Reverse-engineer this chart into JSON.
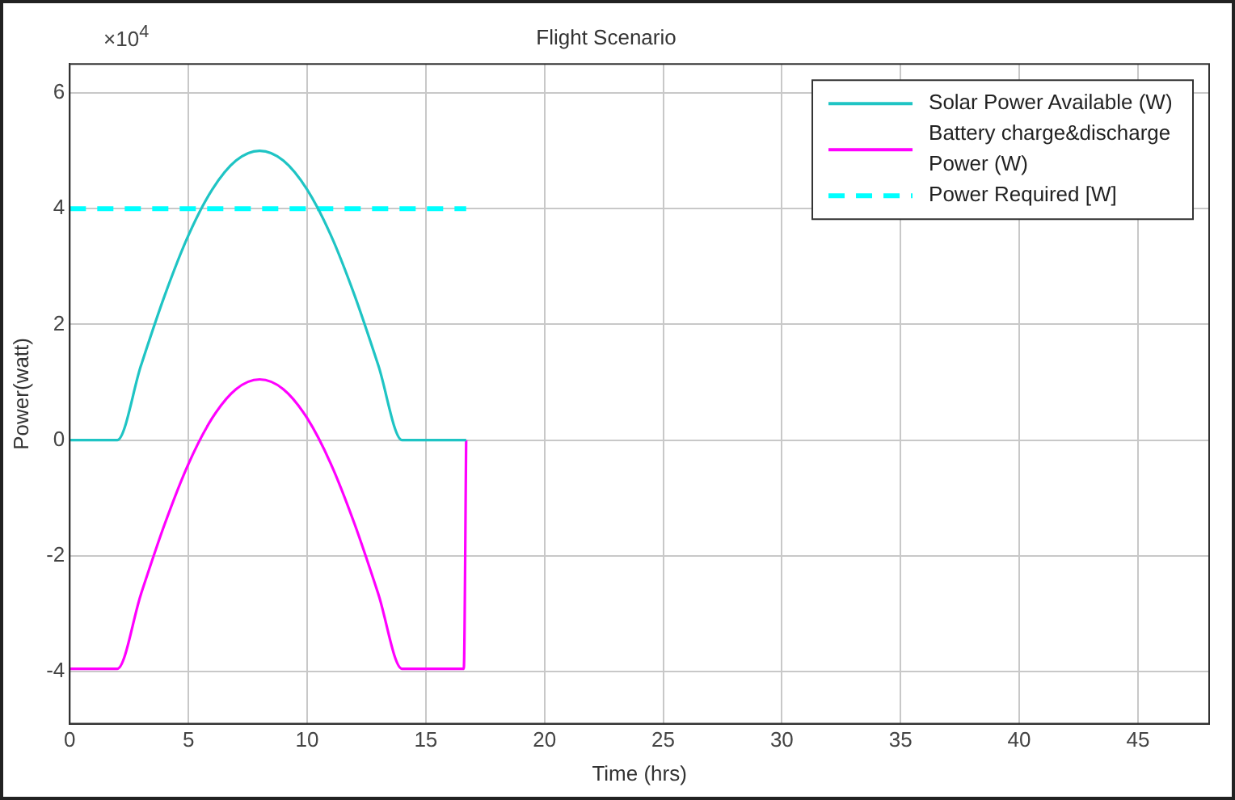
{
  "chart_data": {
    "type": "line",
    "title": "Flight Scenario",
    "xlabel": "Time (hrs)",
    "ylabel": "Power(watt)",
    "annotations": [
      "×10$^{4}$"
    ],
    "xlim": [
      0,
      48
    ],
    "xticks": [
      0,
      5,
      10,
      15,
      20,
      25,
      30,
      35,
      40,
      45
    ],
    "ylim": [
      -4.9,
      6.5
    ],
    "yticks": [
      -4,
      -2,
      0,
      2,
      4,
      6
    ],
    "grid": true,
    "legend": "top right",
    "marker": "none",
    "series": [
      {
        "name": "Solar Power Available (W)",
        "color": "#1fc4c4",
        "line_style": "solid",
        "x": [
          0,
          2,
          3,
          4,
          5,
          6,
          7,
          8,
          9,
          10,
          11,
          12,
          13,
          14,
          16.7
        ],
        "values": [
          0,
          0,
          1.29,
          2.5,
          3.54,
          4.33,
          4.83,
          5.0,
          4.83,
          4.33,
          3.54,
          2.5,
          1.29,
          0,
          0
        ]
      },
      {
        "name": "Battery charge&discharge Power (W)",
        "color": "#ff00ff",
        "line_style": "solid",
        "x": [
          0,
          2,
          3,
          4,
          5,
          6,
          7,
          8,
          9,
          10,
          11,
          12,
          13,
          14,
          16.6,
          16.7
        ],
        "values": [
          -3.95,
          -3.95,
          -2.66,
          -1.45,
          -0.41,
          0.38,
          0.88,
          1.05,
          0.88,
          0.38,
          -0.41,
          -1.45,
          -2.66,
          -3.95,
          -3.95,
          0
        ]
      },
      {
        "name": "Power Required [W]",
        "color": "#00ffff",
        "line_style": "dashed",
        "x": [
          0,
          16.7
        ],
        "values": [
          4,
          4
        ]
      }
    ]
  }
}
